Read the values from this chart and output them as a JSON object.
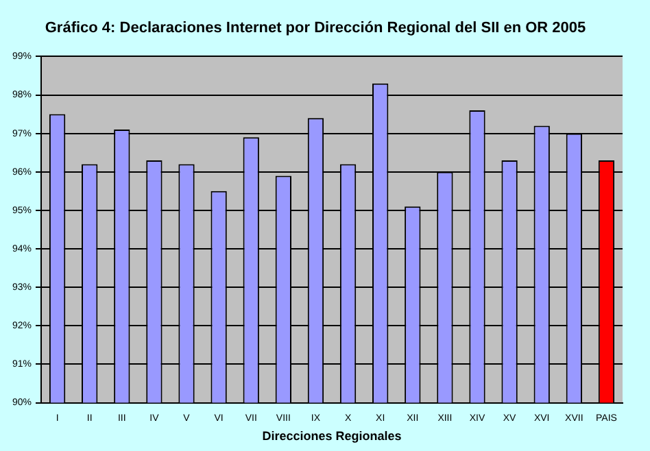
{
  "chart_data": {
    "type": "bar",
    "title": "Gráfico 4: Declaraciones Internet por Dirección Regional del SII en OR 2005",
    "xlabel": "Direcciones Regionales",
    "categories": [
      "I",
      "II",
      "III",
      "IV",
      "V",
      "VI",
      "VII",
      "VIII",
      "IX",
      "X",
      "XI",
      "XII",
      "XIII",
      "XIV",
      "XV",
      "XVI",
      "XVII",
      "PAIS"
    ],
    "values": [
      97.5,
      96.2,
      97.1,
      96.3,
      96.2,
      95.5,
      96.9,
      95.9,
      97.4,
      96.2,
      98.3,
      95.1,
      96.0,
      97.6,
      96.3,
      97.2,
      97.0,
      96.3
    ],
    "colors": [
      "#9999ff",
      "#9999ff",
      "#9999ff",
      "#9999ff",
      "#9999ff",
      "#9999ff",
      "#9999ff",
      "#9999ff",
      "#9999ff",
      "#9999ff",
      "#9999ff",
      "#9999ff",
      "#9999ff",
      "#9999ff",
      "#9999ff",
      "#9999ff",
      "#9999ff",
      "#ff0000"
    ],
    "ylim": [
      90,
      99
    ],
    "yticks": [
      {
        "value": 90,
        "label": "90%"
      },
      {
        "value": 91,
        "label": "91%"
      },
      {
        "value": 92,
        "label": "92%"
      },
      {
        "value": 93,
        "label": "93%"
      },
      {
        "value": 94,
        "label": "94%"
      },
      {
        "value": 95,
        "label": "95%"
      },
      {
        "value": 96,
        "label": "96%"
      },
      {
        "value": 97,
        "label": "97%"
      },
      {
        "value": 98,
        "label": "98%"
      },
      {
        "value": 99,
        "label": "99%"
      }
    ],
    "grid": "y",
    "legend": false
  }
}
